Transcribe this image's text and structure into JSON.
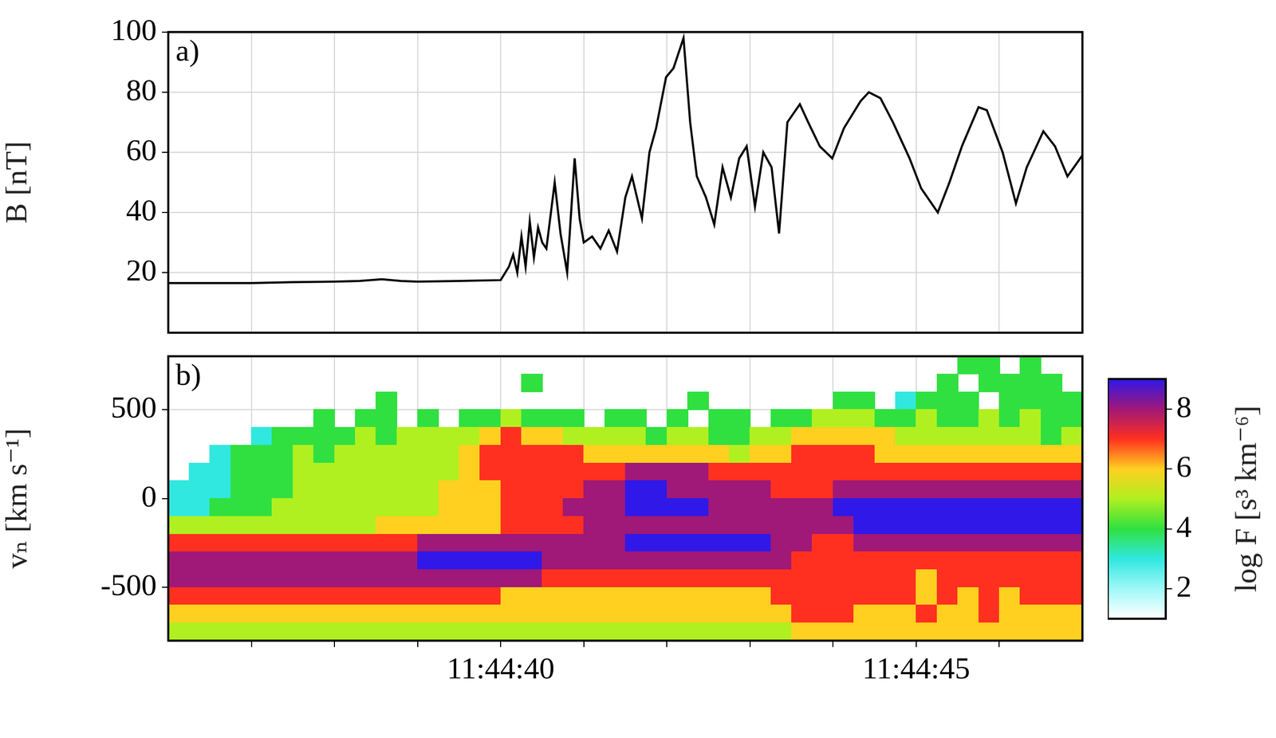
{
  "chart_data": [
    {
      "type": "line",
      "panel_label": "a)",
      "ylabel": "B [nT]",
      "color": "#000000",
      "grid": true,
      "xlim": [
        36,
        47
      ],
      "xticks": [
        {
          "value": 37,
          "label": null
        },
        {
          "value": 38,
          "label": null
        },
        {
          "value": 39,
          "label": null
        },
        {
          "value": 40,
          "label": "11:44:40"
        },
        {
          "value": 41,
          "label": null
        },
        {
          "value": 42,
          "label": null
        },
        {
          "value": 43,
          "label": null
        },
        {
          "value": 44,
          "label": null
        },
        {
          "value": 45,
          "label": "11:44:45"
        },
        {
          "value": 46,
          "label": null
        }
      ],
      "ylim": [
        0,
        100
      ],
      "yticks": [
        20,
        40,
        60,
        80,
        100
      ],
      "x": [
        36.0,
        36.5,
        37.0,
        37.5,
        38.0,
        38.3,
        38.57,
        38.8,
        39.0,
        39.5,
        40.0,
        40.1,
        40.15,
        40.2,
        40.25,
        40.3,
        40.35,
        40.4,
        40.45,
        40.5,
        40.55,
        40.65,
        40.72,
        40.8,
        40.89,
        40.95,
        41.0,
        41.1,
        41.2,
        41.3,
        41.4,
        41.5,
        41.58,
        41.7,
        41.79,
        41.87,
        41.99,
        42.08,
        42.2,
        42.28,
        42.36,
        42.47,
        42.57,
        42.67,
        42.77,
        42.87,
        42.96,
        43.06,
        43.16,
        43.26,
        43.35,
        43.45,
        43.6,
        43.7,
        43.84,
        43.99,
        44.13,
        44.33,
        44.43,
        44.57,
        44.72,
        44.92,
        45.06,
        45.26,
        45.4,
        45.55,
        45.75,
        45.85,
        46.04,
        46.2,
        46.33,
        46.53,
        46.67,
        46.82,
        47.0
      ],
      "values": [
        16.5,
        16.5,
        16.5,
        16.8,
        17,
        17.2,
        17.8,
        17.2,
        17,
        17.2,
        17.5,
        22,
        26,
        20,
        32,
        22,
        37,
        25,
        35,
        30,
        28,
        50,
        33,
        20,
        58,
        38,
        30,
        32,
        28,
        34,
        27,
        45,
        52,
        38,
        60,
        68,
        85,
        88,
        98,
        70,
        52,
        45,
        36,
        55,
        45,
        58,
        62,
        42,
        60,
        55,
        33,
        70,
        76,
        70,
        62,
        58,
        68,
        77,
        80,
        78,
        70,
        58,
        48,
        40,
        50,
        62,
        75,
        74,
        60,
        43,
        55,
        67,
        62,
        52,
        59
      ]
    },
    {
      "type": "heatmap",
      "panel_label": "b)",
      "ylabel": "vₙ [km s⁻¹]",
      "grid": true,
      "xlim": [
        36,
        47
      ],
      "xticks": [
        {
          "value": 37,
          "label": null
        },
        {
          "value": 38,
          "label": null
        },
        {
          "value": 39,
          "label": null
        },
        {
          "value": 40,
          "label": "11:44:40"
        },
        {
          "value": 41,
          "label": null
        },
        {
          "value": 42,
          "label": null
        },
        {
          "value": 43,
          "label": null
        },
        {
          "value": 44,
          "label": null
        },
        {
          "value": 45,
          "label": "11:44:45"
        },
        {
          "value": 46,
          "label": null
        }
      ],
      "ylim": [
        -800,
        800
      ],
      "yticks": [
        -500,
        0,
        500
      ],
      "x": [
        36.125,
        36.375,
        36.625,
        36.875,
        37.125,
        37.375,
        37.625,
        37.875,
        38.125,
        38.375,
        38.625,
        38.875,
        39.125,
        39.375,
        39.625,
        39.875,
        40.125,
        40.375,
        40.625,
        40.875,
        41.125,
        41.375,
        41.625,
        41.875,
        42.125,
        42.375,
        42.625,
        42.875,
        43.125,
        43.375,
        43.625,
        43.875,
        44.125,
        44.375,
        44.625,
        44.875,
        45.125,
        45.375,
        45.625,
        45.875,
        46.125,
        46.375,
        46.625,
        46.875
      ],
      "y": [
        750,
        650,
        550,
        450,
        350,
        250,
        150,
        50,
        -50,
        -150,
        -250,
        -350,
        -450,
        -550,
        -650,
        -750
      ],
      "cells": [
        [
          null,
          null,
          null,
          null,
          null,
          null,
          null,
          null,
          null,
          null,
          null,
          null,
          null,
          null,
          null,
          null,
          null,
          null,
          null,
          null,
          null,
          null,
          null,
          null,
          null,
          null,
          null,
          null,
          null,
          null,
          null,
          null,
          null,
          null,
          null,
          null,
          null,
          null,
          4,
          4,
          null,
          4,
          null,
          null
        ],
        [
          null,
          null,
          null,
          null,
          null,
          null,
          null,
          null,
          null,
          null,
          null,
          null,
          null,
          null,
          null,
          null,
          null,
          4,
          null,
          null,
          null,
          null,
          null,
          null,
          null,
          null,
          null,
          null,
          null,
          null,
          null,
          null,
          null,
          null,
          null,
          null,
          null,
          4,
          null,
          4,
          4,
          4,
          4,
          null
        ],
        [
          null,
          null,
          null,
          null,
          null,
          null,
          null,
          null,
          null,
          null,
          4,
          null,
          null,
          null,
          null,
          null,
          null,
          null,
          null,
          null,
          null,
          null,
          null,
          null,
          null,
          4,
          null,
          null,
          null,
          null,
          null,
          null,
          4,
          4,
          null,
          3,
          4,
          4,
          4,
          null,
          4,
          4,
          4,
          4
        ],
        [
          null,
          null,
          null,
          null,
          null,
          null,
          null,
          4,
          null,
          4,
          4,
          null,
          4,
          null,
          4,
          4,
          5,
          4,
          4,
          4,
          null,
          4,
          4,
          null,
          4,
          null,
          4,
          4,
          null,
          4,
          4,
          5,
          5,
          5,
          4,
          4,
          5,
          4,
          4,
          5,
          4,
          5,
          4,
          4
        ],
        [
          null,
          null,
          null,
          null,
          3,
          4,
          4,
          4,
          4,
          5,
          4,
          5,
          5,
          5,
          5,
          6,
          7,
          6,
          6,
          5,
          5,
          5,
          5,
          4,
          5,
          5,
          4,
          4,
          5,
          5,
          6,
          6,
          6,
          6,
          6,
          5,
          5,
          5,
          5,
          5,
          5,
          5,
          4,
          5
        ],
        [
          null,
          null,
          3,
          4,
          4,
          4,
          5,
          4,
          5,
          5,
          5,
          5,
          5,
          5,
          6,
          7,
          7,
          7,
          7,
          7,
          6,
          6,
          6,
          6,
          6,
          6,
          6,
          5,
          6,
          6,
          7,
          7,
          7,
          7,
          6,
          6,
          6,
          6,
          6,
          6,
          6,
          6,
          6,
          6
        ],
        [
          null,
          3,
          3,
          4,
          4,
          4,
          5,
          5,
          5,
          5,
          5,
          5,
          5,
          5,
          6,
          7,
          7,
          7,
          7,
          7,
          7,
          7,
          8,
          8,
          8,
          8,
          7,
          7,
          7,
          7,
          7,
          7,
          7,
          7,
          7,
          7,
          7,
          7,
          7,
          7,
          7,
          7,
          7,
          7
        ],
        [
          3,
          3,
          3,
          4,
          4,
          4,
          5,
          5,
          5,
          5,
          5,
          5,
          5,
          6,
          6,
          6,
          7,
          7,
          7,
          7,
          8,
          8,
          9,
          9,
          8,
          8,
          8,
          8,
          8,
          7,
          7,
          7,
          8,
          8,
          8,
          8,
          8,
          8,
          8,
          8,
          8,
          8,
          8,
          8
        ],
        [
          3,
          3,
          4,
          4,
          4,
          5,
          5,
          5,
          5,
          5,
          5,
          5,
          5,
          6,
          6,
          6,
          7,
          7,
          7,
          8,
          8,
          8,
          9,
          9,
          9,
          9,
          8,
          8,
          8,
          8,
          8,
          8,
          9,
          9,
          9,
          9,
          9,
          9,
          9,
          9,
          9,
          9,
          9,
          9
        ],
        [
          5,
          5,
          5,
          5,
          5,
          5,
          5,
          5,
          5,
          5,
          6,
          6,
          6,
          6,
          6,
          6,
          7,
          7,
          7,
          7,
          8,
          8,
          8,
          8,
          8,
          8,
          8,
          8,
          8,
          8,
          8,
          8,
          8,
          9,
          9,
          9,
          9,
          9,
          9,
          9,
          9,
          9,
          9,
          9
        ],
        [
          7,
          7,
          7,
          7,
          7,
          7,
          7,
          7,
          7,
          7,
          7,
          7,
          8,
          8,
          8,
          8,
          8,
          8,
          8,
          8,
          8,
          8,
          9,
          9,
          9,
          9,
          9,
          9,
          9,
          8,
          8,
          7,
          7,
          8,
          8,
          8,
          8,
          8,
          8,
          8,
          8,
          8,
          8,
          8
        ],
        [
          8,
          8,
          8,
          8,
          8,
          8,
          8,
          8,
          8,
          8,
          8,
          8,
          9,
          9,
          9,
          9,
          9,
          9,
          8,
          8,
          8,
          8,
          8,
          8,
          8,
          8,
          8,
          8,
          8,
          8,
          7,
          7,
          7,
          7,
          7,
          7,
          7,
          7,
          7,
          7,
          7,
          7,
          7,
          7
        ],
        [
          8,
          8,
          8,
          8,
          8,
          8,
          8,
          8,
          8,
          8,
          8,
          8,
          8,
          8,
          8,
          8,
          8,
          8,
          7,
          7,
          7,
          7,
          7,
          7,
          7,
          7,
          7,
          7,
          7,
          7,
          7,
          7,
          7,
          7,
          7,
          7,
          6,
          7,
          7,
          7,
          7,
          7,
          7,
          7
        ],
        [
          7,
          7,
          7,
          7,
          7,
          7,
          7,
          7,
          7,
          7,
          7,
          7,
          7,
          7,
          7,
          7,
          6,
          6,
          6,
          6,
          6,
          6,
          6,
          6,
          6,
          6,
          6,
          6,
          6,
          7,
          7,
          7,
          7,
          7,
          7,
          7,
          6,
          7,
          6,
          7,
          6,
          7,
          7,
          7
        ],
        [
          6,
          6,
          6,
          6,
          6,
          6,
          6,
          6,
          6,
          6,
          6,
          6,
          6,
          6,
          6,
          6,
          6,
          6,
          6,
          6,
          6,
          6,
          6,
          6,
          6,
          6,
          6,
          6,
          6,
          6,
          7,
          7,
          7,
          6,
          6,
          6,
          7,
          6,
          6,
          7,
          6,
          6,
          6,
          6
        ],
        [
          5,
          5,
          5,
          5,
          5,
          5,
          5,
          5,
          5,
          5,
          5,
          5,
          5,
          5,
          5,
          5,
          5,
          5,
          5,
          5,
          5,
          5,
          5,
          5,
          5,
          5,
          5,
          5,
          5,
          5,
          6,
          6,
          6,
          6,
          6,
          6,
          6,
          6,
          6,
          6,
          6,
          6,
          6,
          6
        ]
      ],
      "colorbar": {
        "label": "log F [s³ km⁻⁶]",
        "range": [
          1,
          9
        ],
        "ticks": [
          2,
          4,
          6,
          8
        ]
      }
    }
  ]
}
